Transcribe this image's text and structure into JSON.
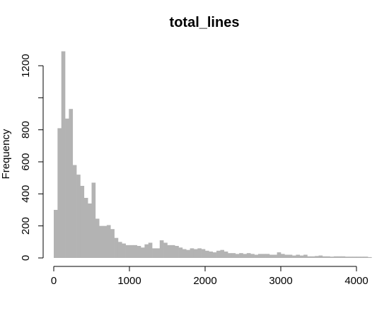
{
  "chart_data": {
    "type": "bar",
    "title": "total_lines",
    "xlabel": "",
    "ylabel": "Frequency",
    "bin_width": 50,
    "x_start": 0,
    "values": [
      300,
      810,
      1290,
      870,
      930,
      580,
      520,
      450,
      375,
      340,
      470,
      245,
      200,
      200,
      205,
      180,
      125,
      100,
      90,
      80,
      80,
      80,
      75,
      65,
      85,
      95,
      60,
      60,
      110,
      95,
      80,
      80,
      75,
      65,
      55,
      50,
      60,
      55,
      60,
      55,
      45,
      40,
      35,
      45,
      50,
      40,
      30,
      30,
      25,
      30,
      25,
      30,
      25,
      20,
      25,
      25,
      25,
      20,
      20,
      35,
      25,
      20,
      20,
      15,
      20,
      15,
      20,
      10,
      10,
      12,
      15,
      10,
      10,
      8,
      10,
      10,
      10,
      8,
      8,
      8,
      8,
      8,
      8,
      5
    ],
    "xlim": [
      0,
      4150
    ],
    "ylim": [
      0,
      1300
    ],
    "x_ticks": [
      0,
      1000,
      2000,
      3000,
      4000
    ],
    "x_tick_labels": [
      "0",
      "1000",
      "2000",
      "3000",
      "4000"
    ],
    "y_ticks": [
      0,
      200,
      400,
      600,
      800,
      1000,
      1200
    ],
    "y_tick_labels": [
      "0",
      "200",
      "400",
      "600",
      "800",
      "",
      "1200"
    ],
    "bar_color": "#b3b3b3",
    "grid": false,
    "legend": "none"
  }
}
